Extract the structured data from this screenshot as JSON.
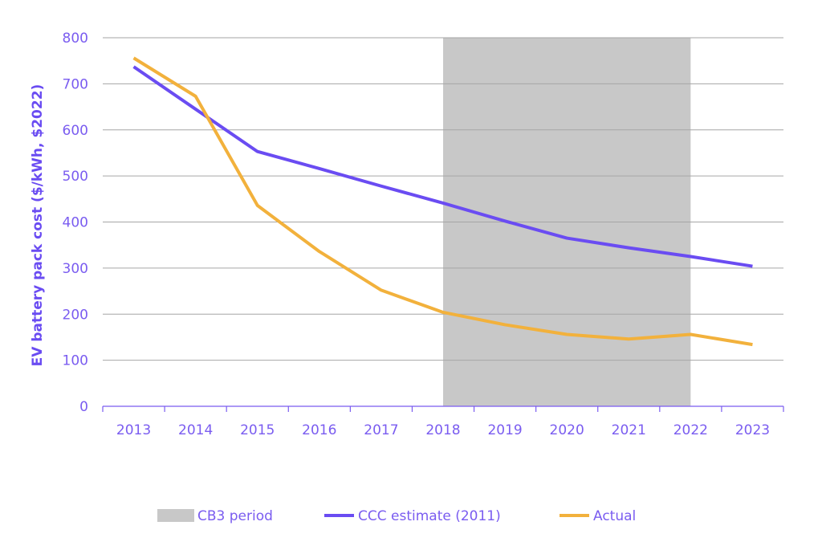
{
  "chart_data": {
    "type": "line",
    "ylabel": "EV battery pack cost ($/kWh, $2022)",
    "ylim": [
      0,
      800
    ],
    "yticks": [
      "0",
      "100",
      "200",
      "300",
      "400",
      "500",
      "600",
      "700",
      "800"
    ],
    "categories": [
      "2013",
      "2014",
      "2015",
      "2016",
      "2017",
      "2018",
      "2019",
      "2020",
      "2021",
      "2022",
      "2023"
    ],
    "shaded_region": {
      "name": "CB3 period",
      "from": "2018",
      "to": "2022",
      "color": "#c8c8c8"
    },
    "series": [
      {
        "name": "CCC estimate (2011)",
        "color": "#6a4cf2",
        "values": [
          737,
          645,
          553,
          516,
          478,
          441,
          402,
          365,
          344,
          325,
          304
        ]
      },
      {
        "name": "Actual",
        "color": "#f2b13c",
        "values": [
          756,
          673,
          436,
          336,
          252,
          204,
          177,
          156,
          146,
          156,
          134
        ]
      }
    ],
    "grid": true,
    "legend_position": "bottom"
  }
}
